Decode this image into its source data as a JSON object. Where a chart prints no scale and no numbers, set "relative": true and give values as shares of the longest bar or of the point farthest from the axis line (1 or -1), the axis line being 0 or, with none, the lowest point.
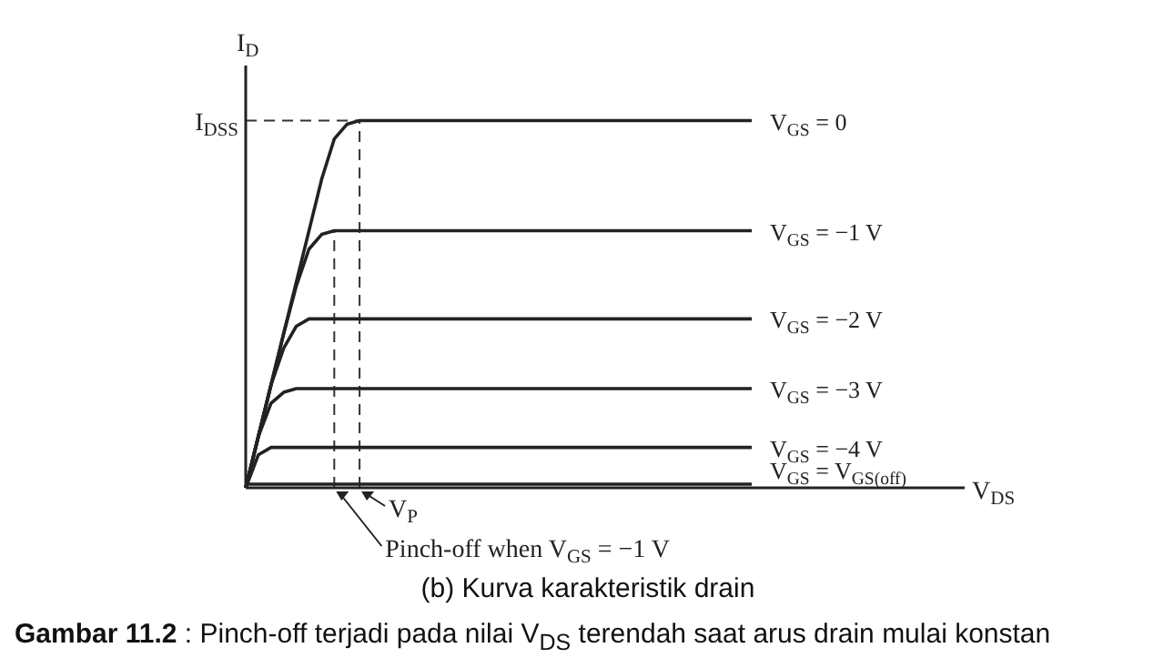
{
  "chart_data": {
    "type": "line",
    "title": "(b) Kurva karakteristik drain",
    "ylabel": "I$_{D}$",
    "relative": true,
    "marker": "none",
    "line_style": "solid",
    "categories": [
      null,
      null,
      null,
      null,
      null,
      null,
      null,
      null,
      null,
      null,
      null,
      null,
      null,
      null,
      null,
      null,
      null,
      null,
      null,
      null,
      null,
      null,
      null,
      null,
      null,
      null,
      null,
      null,
      null,
      null,
      null,
      null,
      null,
      null,
      null,
      null,
      null,
      null,
      null,
      null,
      null
    ],
    "series": [
      {
        "name": "V$_{GS}$ = 0",
        "color": "#222222",
        "values": [
          0,
          0.14,
          0.28,
          0.42,
          0.56,
          0.7,
          0.84,
          0.95,
          0.99,
          1,
          1,
          1,
          1,
          1,
          1,
          1,
          1,
          1,
          1,
          1,
          1,
          1,
          1,
          1,
          1,
          1,
          1,
          1,
          1,
          1,
          1,
          1,
          1,
          1,
          1,
          1,
          1,
          1,
          1,
          1,
          1
        ]
      },
      {
        "name": "V$_{GS}$ = −1 V",
        "color": "#222222",
        "values": [
          0,
          0.14,
          0.28,
          0.42,
          0.55,
          0.65,
          0.69,
          0.7,
          0.7,
          0.7,
          0.7,
          0.7,
          0.7,
          0.7,
          0.7,
          0.7,
          0.7,
          0.7,
          0.7,
          0.7,
          0.7,
          0.7,
          0.7,
          0.7,
          0.7,
          0.7,
          0.7,
          0.7,
          0.7,
          0.7,
          0.7,
          0.7,
          0.7,
          0.7,
          0.7,
          0.7,
          0.7,
          0.7,
          0.7,
          0.7,
          0.7
        ]
      },
      {
        "name": "V$_{GS}$ = −2 V",
        "color": "#222222",
        "values": [
          0,
          0.14,
          0.28,
          0.38,
          0.44,
          0.46,
          0.46,
          0.46,
          0.46,
          0.46,
          0.46,
          0.46,
          0.46,
          0.46,
          0.46,
          0.46,
          0.46,
          0.46,
          0.46,
          0.46,
          0.46,
          0.46,
          0.46,
          0.46,
          0.46,
          0.46,
          0.46,
          0.46,
          0.46,
          0.46,
          0.46,
          0.46,
          0.46,
          0.46,
          0.46,
          0.46,
          0.46,
          0.46,
          0.46,
          0.46,
          0.46
        ]
      },
      {
        "name": "V$_{GS}$ = −3 V",
        "color": "#222222",
        "values": [
          0,
          0.14,
          0.23,
          0.26,
          0.27,
          0.27,
          0.27,
          0.27,
          0.27,
          0.27,
          0.27,
          0.27,
          0.27,
          0.27,
          0.27,
          0.27,
          0.27,
          0.27,
          0.27,
          0.27,
          0.27,
          0.27,
          0.27,
          0.27,
          0.27,
          0.27,
          0.27,
          0.27,
          0.27,
          0.27,
          0.27,
          0.27,
          0.27,
          0.27,
          0.27,
          0.27,
          0.27,
          0.27,
          0.27,
          0.27,
          0.27
        ]
      },
      {
        "name": "V$_{GS}$ = −4 V",
        "color": "#222222",
        "values": [
          0,
          0.09,
          0.11,
          0.11,
          0.11,
          0.11,
          0.11,
          0.11,
          0.11,
          0.11,
          0.11,
          0.11,
          0.11,
          0.11,
          0.11,
          0.11,
          0.11,
          0.11,
          0.11,
          0.11,
          0.11,
          0.11,
          0.11,
          0.11,
          0.11,
          0.11,
          0.11,
          0.11,
          0.11,
          0.11,
          0.11,
          0.11,
          0.11,
          0.11,
          0.11,
          0.11,
          0.11,
          0.11,
          0.11,
          0.11,
          0.11
        ]
      },
      {
        "name": "V$_{GS}$ = V$_{GS(off)}$",
        "color": "#222222",
        "values": [
          0.01,
          0.01,
          0.01,
          0.01,
          0.01,
          0.01,
          0.01,
          0.01,
          0.01,
          0.01,
          0.01,
          0.01,
          0.01,
          0.01,
          0.01,
          0.01,
          0.01,
          0.01,
          0.01,
          0.01,
          0.01,
          0.01,
          0.01,
          0.01,
          0.01,
          0.01,
          0.01,
          0.01,
          0.01,
          0.01,
          0.01,
          0.01,
          0.01,
          0.01,
          0.01,
          0.01,
          0.01,
          0.01,
          0.01,
          0.01,
          0.01
        ]
      }
    ],
    "ref_lines": [
      {
        "axis": "y",
        "value": 1,
        "label": "I$_{DSS}$",
        "line_style": "dashed",
        "color": "#333333"
      }
    ],
    "annotations": [
      "V$_{DS}$",
      "V$_{P}$",
      "Pinch-off when V$_{GS}$ = −1 V",
      "Gambar 11.2 : Pinch-off terjadi pada nilai V$_{DS}$ terendah saat arus drain mulai konstan"
    ]
  }
}
